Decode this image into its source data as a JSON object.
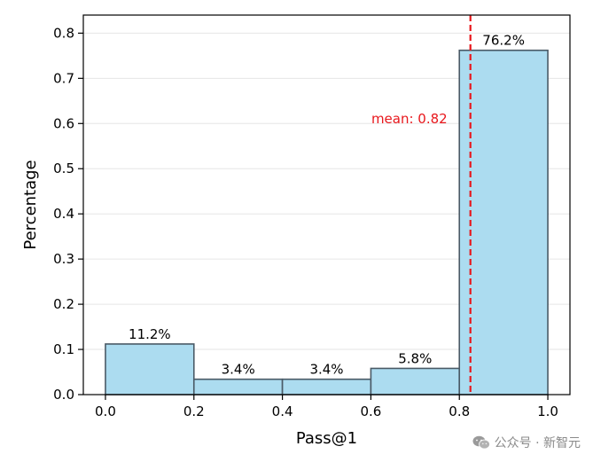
{
  "chart_data": {
    "type": "bar",
    "title": "",
    "xlabel": "Pass@1",
    "ylabel": "Percentage",
    "bins": [
      {
        "x0": 0.0,
        "x1": 0.2,
        "value": 0.112,
        "label": "11.2%"
      },
      {
        "x0": 0.2,
        "x1": 0.4,
        "value": 0.034,
        "label": "3.4%"
      },
      {
        "x0": 0.4,
        "x1": 0.6,
        "value": 0.034,
        "label": "3.4%"
      },
      {
        "x0": 0.6,
        "x1": 0.8,
        "value": 0.058,
        "label": "5.8%"
      },
      {
        "x0": 0.8,
        "x1": 1.0,
        "value": 0.762,
        "label": "76.2%"
      }
    ],
    "xlim": [
      -0.05,
      1.05
    ],
    "ylim": [
      0,
      0.84
    ],
    "xticks": [
      0.0,
      0.2,
      0.4,
      0.6,
      0.8,
      1.0
    ],
    "xtick_labels": [
      "0.0",
      "0.2",
      "0.4",
      "0.6",
      "0.8",
      "1.0"
    ],
    "yticks": [
      0.0,
      0.1,
      0.2,
      0.3,
      0.4,
      0.5,
      0.6,
      0.7,
      0.8
    ],
    "ytick_labels": [
      "0.0",
      "0.1",
      "0.2",
      "0.3",
      "0.4",
      "0.5",
      "0.6",
      "0.7",
      "0.8"
    ],
    "grid": "y",
    "mean_line": {
      "x": 0.825,
      "label": "mean: 0.82",
      "color": "#e8171c"
    },
    "bar_color": "#acdcf0",
    "bar_edge_color": "#4a5a66"
  },
  "watermark": {
    "text": "公众号 · 新智元",
    "icon": "wechat-icon"
  }
}
